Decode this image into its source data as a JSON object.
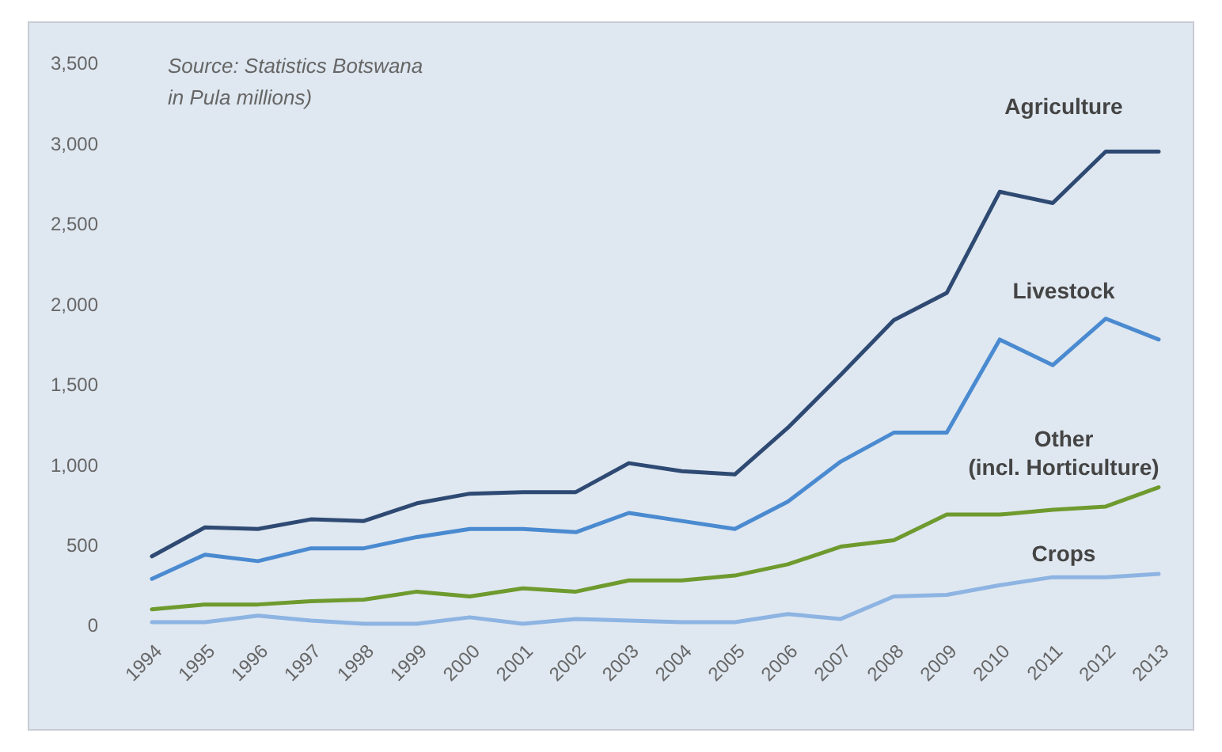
{
  "chart_data": {
    "type": "line",
    "categories": [
      "1994",
      "1995",
      "1996",
      "1997",
      "1998",
      "1999",
      "2000",
      "2001",
      "2002",
      "2003",
      "2004",
      "2005",
      "2006",
      "2007",
      "2008",
      "2009",
      "2010",
      "2011",
      "2012",
      "2013"
    ],
    "series": [
      {
        "name": "Agriculture",
        "color": "#2e4a73",
        "values": [
          430,
          610,
          600,
          660,
          650,
          760,
          820,
          830,
          830,
          1010,
          960,
          940,
          1230,
          1560,
          1900,
          2070,
          2700,
          2630,
          2950,
          2950
        ]
      },
      {
        "name": "Livestock",
        "color": "#4a8ad0",
        "values": [
          290,
          440,
          400,
          480,
          480,
          550,
          600,
          600,
          580,
          700,
          650,
          600,
          770,
          1020,
          1200,
          1200,
          1780,
          1620,
          1910,
          1780
        ]
      },
      {
        "name": "Other\n(incl. Horticulture)",
        "color": "#6e9a2e",
        "values": [
          100,
          130,
          130,
          150,
          160,
          210,
          180,
          230,
          210,
          280,
          280,
          310,
          380,
          490,
          530,
          690,
          690,
          720,
          740,
          860
        ]
      },
      {
        "name": "Crops",
        "color": "#8db4e2",
        "values": [
          20,
          20,
          60,
          30,
          10,
          10,
          50,
          10,
          40,
          30,
          20,
          20,
          70,
          40,
          180,
          190,
          250,
          300,
          300,
          320
        ]
      }
    ],
    "ylim": [
      0,
      3500
    ],
    "yticks": [
      {
        "value": 0,
        "label": "0"
      },
      {
        "value": 500,
        "label": "500"
      },
      {
        "value": 1000,
        "label": "1,000"
      },
      {
        "value": 1500,
        "label": "1,500"
      },
      {
        "value": 2000,
        "label": "2,000"
      },
      {
        "value": 2500,
        "label": "2,500"
      },
      {
        "value": 3000,
        "label": "3,000"
      },
      {
        "value": 3500,
        "label": "3,500"
      }
    ],
    "annotations": [
      "Source: Statistics Botswana",
      "in Pula millions)"
    ],
    "grid": false,
    "legend": false,
    "marker": "none",
    "line_style": "solid"
  }
}
